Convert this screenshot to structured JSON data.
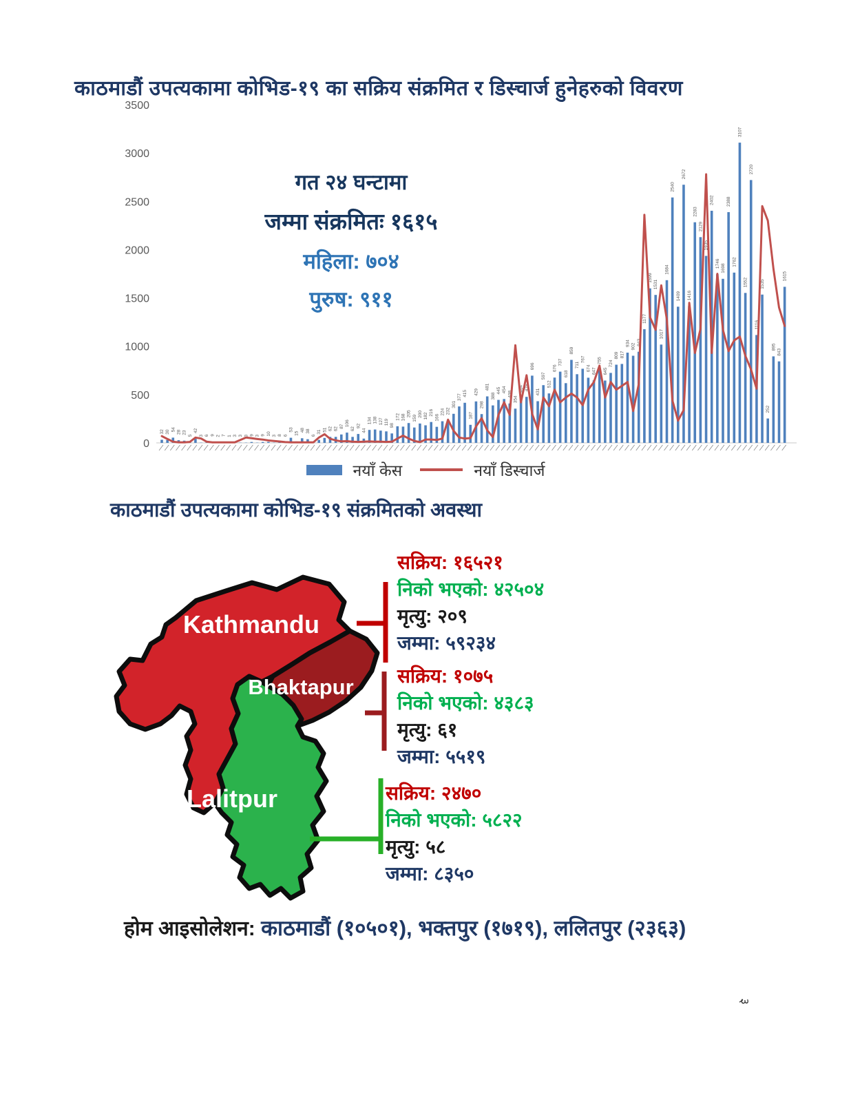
{
  "page_number": "३",
  "chart_section": {
    "title": "काठमाडौं उपत्यकामा कोभिड-१९ का सक्रिय संक्रमित र डिस्चार्ज हुनेहरुको विवरण",
    "overlay": {
      "line1": "गत २४ घन्टामा",
      "line2": "जम्मा संक्रमितः १६१५",
      "line3": "महिला: ७०४",
      "line4": "पुरुष: ९११"
    },
    "legend": {
      "cases": "नयाँ केस",
      "discharge": "नयाँ डिस्चार्ज"
    }
  },
  "chart_data": {
    "type": "bar",
    "title": "काठमाडौं उपत्यकामा कोभिड-१९ का सक्रिय संक्रमित र डिस्चार्ज हुनेहरुको विवरण",
    "xlabel": "",
    "ylabel": "",
    "ylim": [
      0,
      3500
    ],
    "yticks": [
      0,
      500,
      1000,
      1500,
      2000,
      2500,
      3000,
      3500
    ],
    "grid": false,
    "legend_position": "bottom",
    "x_axis_note": "rotated daily date labels, illegible at source resolution",
    "series": [
      {
        "name": "नयाँ केस",
        "type": "bar",
        "color": "#4F81BD",
        "values": [
          32,
          30,
          54,
          28,
          23,
          5,
          42,
          3,
          6,
          9,
          2,
          7,
          1,
          3,
          3,
          3,
          9,
          3,
          9,
          10,
          3,
          8,
          6,
          53,
          15,
          48,
          38,
          6,
          31,
          51,
          62,
          62,
          87,
          106,
          62,
          92,
          44,
          134,
          138,
          127,
          119,
          98,
          172,
          168,
          205,
          159,
          200,
          182,
          216,
          166,
          224,
          232,
          301,
          377,
          415,
          187,
          429,
          298,
          481,
          388,
          445,
          454,
          408,
          354,
          464,
          476,
          696,
          431,
          597,
          512,
          676,
          737,
          618,
          859,
          711,
          767,
          674,
          647,
          755,
          645,
          724,
          809,
          817,
          934,
          902,
          943,
          1177,
          1599,
          1531,
          1017,
          1684,
          2540,
          1409,
          2672,
          1416,
          2283,
          2129,
          1935,
          2402,
          1746,
          1698,
          2388,
          1762,
          3107,
          1552,
          2720,
          1116,
          1535,
          252,
          895,
          843,
          1615
        ]
      },
      {
        "name": "नयाँ डिस्चार्ज",
        "type": "line",
        "color": "#C0504D",
        "values": [
          70,
          40,
          12,
          6,
          5,
          10,
          55,
          45,
          12,
          6,
          5,
          5,
          5,
          6,
          30,
          55,
          48,
          40,
          34,
          25,
          20,
          14,
          8,
          6,
          5,
          6,
          6,
          5,
          55,
          90,
          42,
          26,
          16,
          18,
          12,
          10,
          12,
          15,
          12,
          12,
          10,
          12,
          45,
          75,
          45,
          20,
          8,
          35,
          35,
          30,
          45,
          240,
          125,
          55,
          45,
          50,
          170,
          255,
          130,
          60,
          290,
          420,
          290,
          1010,
          420,
          700,
          300,
          140,
          470,
          380,
          550,
          420,
          470,
          510,
          470,
          390,
          550,
          630,
          800,
          470,
          630,
          550,
          590,
          630,
          330,
          610,
          2360,
          1300,
          1170,
          1630,
          1280,
          440,
          230,
          340,
          1450,
          930,
          1180,
          2780,
          930,
          1750,
          1170,
          950,
          1060,
          1100,
          900,
          760,
          560,
          2450,
          2300,
          1800,
          1400,
          1210
        ]
      }
    ]
  },
  "map_section": {
    "title": "काठमाडौं उपत्यकामा कोभिड-१९ संक्रमितको अवस्था",
    "stat_colors": {
      "active": "#C00000",
      "recovered": "#00B050",
      "deaths": "#1A1A1A",
      "total": "#1F3864"
    },
    "districts": [
      {
        "name": "Kathmandu",
        "fill": "#D2232A",
        "active": "सक्रिय: १६५२१",
        "recovered": "निको भएको: ४२५०४",
        "deaths": "मृत्यु: २०९",
        "total": "जम्मा: ५९२३४"
      },
      {
        "name": "Bhaktapur",
        "fill": "#9B1C1F",
        "active": "सक्रिय: १०७५",
        "recovered": "निको भएको: ४३८३",
        "deaths": "मृत्यु: ६१",
        "total": "जम्मा: ५५१९"
      },
      {
        "name": "Lalitpur",
        "fill": "#2BB24C",
        "active": "सक्रिय: २४७०",
        "recovered": "निको भएको: ५८२२",
        "deaths": "मृत्यु: ५८",
        "total": "जम्मा: ८३५०"
      }
    ]
  },
  "home_isolation": {
    "label": "होम आइसोलेशन:",
    "value": "काठमाडौं (१०५०१), भक्तपुर (१७१९), ललितपुर (२३६३)"
  }
}
